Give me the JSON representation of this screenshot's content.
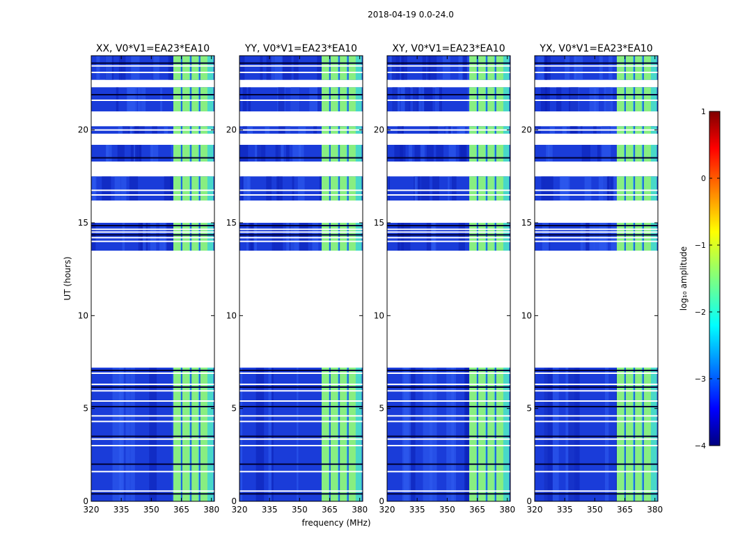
{
  "chart_data": {
    "type": "heatmap",
    "suptitle": "2018-04-19 0.0-24.0",
    "xlabel": "frequency (MHz)",
    "ylabel": "UT (hours)",
    "xlim": [
      320,
      381.5
    ],
    "ylim": [
      0,
      24
    ],
    "xticks": [
      320,
      335,
      350,
      365,
      380
    ],
    "yticks": [
      0,
      5,
      10,
      15,
      20
    ],
    "panels": [
      {
        "title": "XX, V0*V1=EA23*EA10"
      },
      {
        "title": "YY, V0*V1=EA23*EA10"
      },
      {
        "title": "XY, V0*V1=EA23*EA10"
      },
      {
        "title": "YX, V0*V1=EA23*EA10"
      }
    ],
    "bright_band_mhz": [
      361,
      381
    ],
    "data_ranges_hours": [
      [
        0,
        7.2
      ],
      [
        13.5,
        15
      ],
      [
        16.2,
        17.5
      ],
      [
        18.3,
        19.2
      ],
      [
        19.8,
        20.2
      ],
      [
        21.0,
        22.3
      ],
      [
        22.7,
        24
      ]
    ],
    "gap_lines_hours": [
      0.4,
      0.55,
      1.6,
      2.0,
      3.0,
      3.35,
      3.5,
      4.3,
      4.6,
      5.1,
      5.4,
      5.95,
      6.15,
      6.3,
      6.9,
      7.05,
      14.0,
      14.2,
      14.35,
      14.5,
      14.65,
      14.85,
      16.5,
      16.75,
      18.5,
      20.0,
      21.6,
      21.9,
      23.1,
      23.45,
      23.6
    ],
    "colorbar": {
      "label": "log₁₀ amplitude",
      "range": [
        -4,
        1
      ],
      "ticks": [
        "1",
        "0",
        "−1",
        "−2",
        "−3",
        "−4"
      ],
      "colormap": "jet"
    }
  }
}
